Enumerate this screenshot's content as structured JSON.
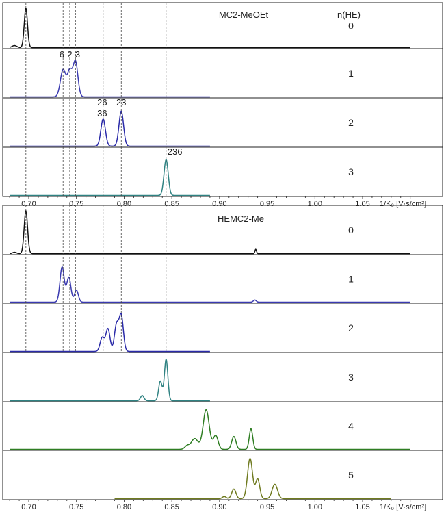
{
  "chart_data": [
    {
      "type": "line",
      "title": "MC2-MeOEt",
      "xlabel": "1/K₀ [V·s/cm²]",
      "ylabel": "",
      "xlim": [
        0.68,
        1.1
      ],
      "x_ticks": [
        "0.70",
        "0.75",
        "0.80",
        "0.85",
        "0.90",
        "0.95",
        "1.00",
        "1.05"
      ],
      "series_header": "n(HE)",
      "grid": false,
      "reference_lines": [
        0.697,
        0.736,
        0.743,
        0.749,
        0.778,
        0.797,
        0.844
      ],
      "series": [
        {
          "name": "0",
          "color": "#111111",
          "x_range": [
            0.68,
            1.1
          ],
          "peaks": [
            {
              "x": 0.697,
              "height": 0.98,
              "width": 0.0017
            },
            {
              "x": 0.685,
              "height": 0.05,
              "width": 0.0025
            }
          ]
        },
        {
          "name": "1",
          "color": "#3a3ab0",
          "x_range": [
            0.68,
            0.89
          ],
          "peaks": [
            {
              "x": 0.736,
              "height": 0.62,
              "width": 0.0028
            },
            {
              "x": 0.743,
              "height": 0.58,
              "width": 0.0025
            },
            {
              "x": 0.749,
              "height": 0.8,
              "width": 0.0025
            }
          ],
          "peak_labels": [
            {
              "x": 0.743,
              "text": "6-2-3"
            }
          ]
        },
        {
          "name": "2",
          "color": "#2a2aa8",
          "x_range": [
            0.68,
            0.89
          ],
          "peaks": [
            {
              "x": 0.778,
              "height": 0.62,
              "width": 0.0024
            },
            {
              "x": 0.797,
              "height": 0.8,
              "width": 0.0024
            }
          ],
          "peak_labels": [
            {
              "x": 0.777,
              "text": "26",
              "line": 1
            },
            {
              "x": 0.777,
              "text": "36",
              "line": 2
            },
            {
              "x": 0.797,
              "text": "23",
              "line": 1
            }
          ]
        },
        {
          "name": "3",
          "color": "#2f8282",
          "x_range": [
            0.68,
            0.89
          ],
          "peaks": [
            {
              "x": 0.844,
              "height": 0.82,
              "width": 0.0022
            }
          ],
          "peak_labels": [
            {
              "x": 0.844,
              "text": "236"
            }
          ]
        }
      ]
    },
    {
      "type": "line",
      "title": "HEMC2-Me",
      "xlabel": "1/K₀ [V·s/cm²]",
      "ylabel": "",
      "xlim": [
        0.68,
        1.1
      ],
      "x_ticks": [
        "0.70",
        "0.75",
        "0.80",
        "0.85",
        "0.90",
        "0.95",
        "1.00",
        "1.05"
      ],
      "grid": false,
      "series": [
        {
          "name": "0",
          "color": "#111111",
          "x_range": [
            0.68,
            1.1
          ],
          "peaks": [
            {
              "x": 0.697,
              "height": 0.98,
              "width": 0.0018
            },
            {
              "x": 0.685,
              "height": 0.03,
              "width": 0.002
            },
            {
              "x": 0.938,
              "height": 0.1,
              "width": 0.0008
            }
          ]
        },
        {
          "name": "1",
          "color": "#3a3ab0",
          "x_range": [
            0.68,
            1.1
          ],
          "peaks": [
            {
              "x": 0.735,
              "height": 0.82,
              "width": 0.0022
            },
            {
              "x": 0.742,
              "height": 0.58,
              "width": 0.0022
            },
            {
              "x": 0.75,
              "height": 0.28,
              "width": 0.002
            },
            {
              "x": 0.937,
              "height": 0.05,
              "width": 0.0015
            }
          ]
        },
        {
          "name": "2",
          "color": "#2a2aa8",
          "x_range": [
            0.68,
            0.89
          ],
          "peaks": [
            {
              "x": 0.777,
              "height": 0.32,
              "width": 0.0022
            },
            {
              "x": 0.783,
              "height": 0.52,
              "width": 0.0022
            },
            {
              "x": 0.792,
              "height": 0.6,
              "width": 0.0022
            },
            {
              "x": 0.797,
              "height": 0.82,
              "width": 0.0022
            }
          ]
        },
        {
          "name": "3",
          "color": "#2f8282",
          "x_range": [
            0.68,
            0.89
          ],
          "peaks": [
            {
              "x": 0.819,
              "height": 0.12,
              "width": 0.0018
            },
            {
              "x": 0.838,
              "height": 0.45,
              "width": 0.0018
            },
            {
              "x": 0.844,
              "height": 0.95,
              "width": 0.0018
            }
          ]
        },
        {
          "name": "4",
          "color": "#2e7d22",
          "x_range": [
            0.68,
            1.1
          ],
          "peaks": [
            {
              "x": 0.866,
              "height": 0.08,
              "width": 0.0025
            },
            {
              "x": 0.874,
              "height": 0.25,
              "width": 0.0035
            },
            {
              "x": 0.886,
              "height": 0.92,
              "width": 0.0032
            },
            {
              "x": 0.896,
              "height": 0.32,
              "width": 0.0025
            },
            {
              "x": 0.915,
              "height": 0.3,
              "width": 0.0022
            },
            {
              "x": 0.933,
              "height": 0.48,
              "width": 0.0018
            }
          ]
        },
        {
          "name": "5",
          "color": "#6f7a1f",
          "x_range": [
            0.79,
            1.08
          ],
          "peaks": [
            {
              "x": 0.905,
              "height": 0.05,
              "width": 0.002
            },
            {
              "x": 0.915,
              "height": 0.22,
              "width": 0.0022
            },
            {
              "x": 0.932,
              "height": 0.92,
              "width": 0.0026
            },
            {
              "x": 0.94,
              "height": 0.45,
              "width": 0.0022
            },
            {
              "x": 0.958,
              "height": 0.33,
              "width": 0.0028
            }
          ]
        }
      ]
    }
  ]
}
